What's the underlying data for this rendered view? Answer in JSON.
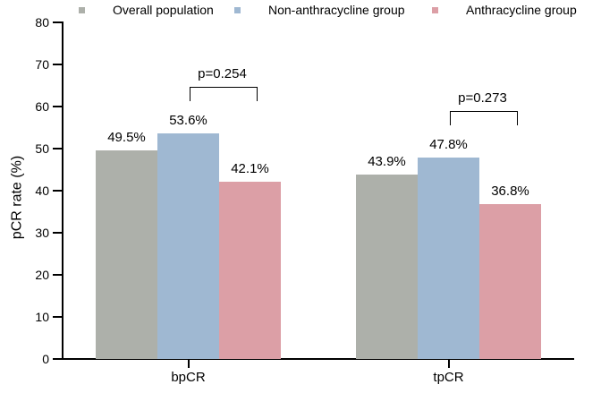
{
  "figure": {
    "background": "#ffffff",
    "axis_color": "#000000",
    "text_color": "#000000"
  },
  "legend": {
    "position": "top",
    "items": [
      {
        "label": "Overall population",
        "color": "#adb0aa",
        "marker": "square"
      },
      {
        "label": "Non-anthracycline group",
        "color": "#9fb8d2",
        "marker": "square"
      },
      {
        "label": "Anthracycline group",
        "color": "#dc9fa6",
        "marker": "square"
      }
    ]
  },
  "chart_data": {
    "type": "bar",
    "title": "",
    "xlabel": "",
    "ylabel": "pCR rate (%)",
    "ylim": [
      0,
      80
    ],
    "yticks": [
      0,
      10,
      20,
      30,
      40,
      50,
      60,
      70,
      80
    ],
    "grid": false,
    "legend_position": "top",
    "categories": [
      "bpCR",
      "tpCR"
    ],
    "series": [
      {
        "name": "Overall population",
        "color": "#adb0aa",
        "values": [
          49.5,
          43.9
        ],
        "labels": [
          "49.5%",
          "43.9%"
        ]
      },
      {
        "name": "Non-anthracycline group",
        "color": "#9fb8d2",
        "values": [
          53.6,
          47.8
        ],
        "labels": [
          "53.6%",
          "47.8%"
        ]
      },
      {
        "name": "Anthracycline group",
        "color": "#dc9fa6",
        "values": [
          42.1,
          36.8
        ],
        "labels": [
          "42.1%",
          "36.8%"
        ]
      }
    ],
    "annotations": [
      {
        "category": "bpCR",
        "label": "p=0.254",
        "between": [
          "Non-anthracycline group",
          "Anthracycline group"
        ]
      },
      {
        "category": "tpCR",
        "label": "p=0.273",
        "between": [
          "Non-anthracycline group",
          "Anthracycline group"
        ]
      }
    ]
  }
}
